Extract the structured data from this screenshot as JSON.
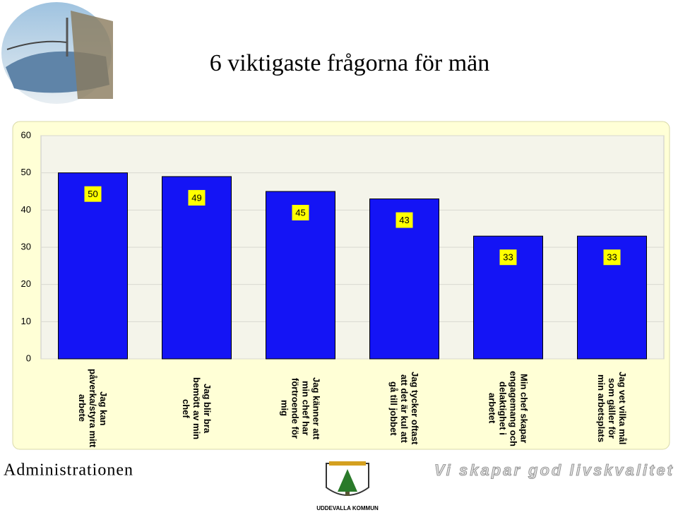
{
  "chart_data": {
    "type": "bar",
    "title": "6 viktigaste frågorna för män",
    "categories": [
      "Jag kan påverka/styra mitt arbete",
      "Jag blir bra bemött av min chef",
      "Jag känner att min chef har förtroende för mig",
      "Jag tycker oftast att det är kul att gå till jobbet",
      "Min chef skapar engagemang och delaktighet i arbetet",
      "Jag vet vilka mål som gäller för min arbetsplats"
    ],
    "values": [
      50,
      49,
      45,
      43,
      33,
      33
    ],
    "color": "#1414f5",
    "ylim": [
      0,
      60
    ],
    "yticks": [
      0,
      10,
      20,
      30,
      40,
      50,
      60
    ],
    "grid": true
  },
  "footer": {
    "left": "Administrationen",
    "slogan": "Vi skapar god livskvalitet",
    "logo_text": "UDDEVALLA KOMMUN"
  }
}
